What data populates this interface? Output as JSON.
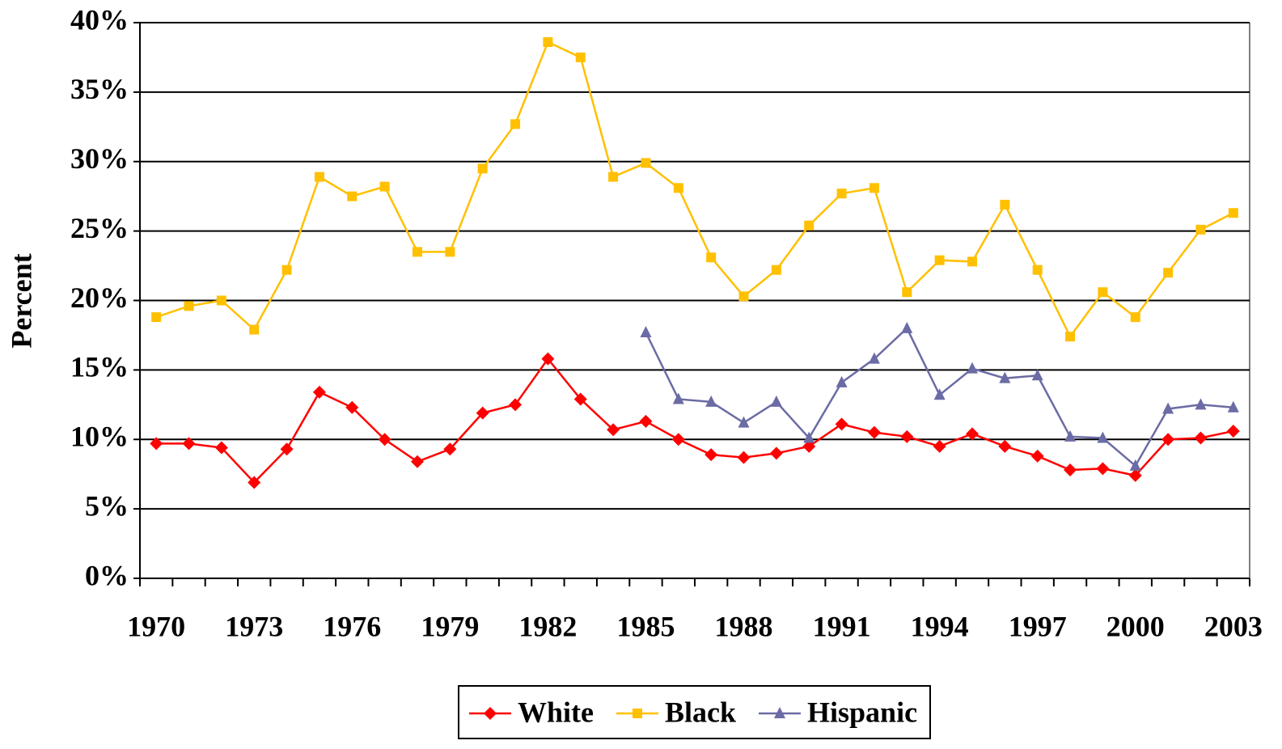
{
  "chart_data": {
    "type": "line",
    "y_label": "Percent",
    "categories": [
      "1970",
      null,
      null,
      "1973",
      null,
      null,
      "1976",
      null,
      null,
      "1979",
      null,
      null,
      "1982",
      null,
      null,
      "1985",
      null,
      null,
      "1988",
      null,
      null,
      "1991",
      null,
      null,
      "1994",
      null,
      null,
      "1997",
      null,
      null,
      "2000",
      null,
      null,
      "2003"
    ],
    "series": [
      {
        "name": "White",
        "color": "#ff0000",
        "marker": "diamond",
        "values": [
          9.7,
          9.7,
          9.4,
          6.9,
          9.3,
          13.4,
          12.3,
          10.0,
          8.4,
          9.3,
          11.9,
          12.5,
          15.8,
          12.9,
          10.7,
          11.3,
          10.0,
          8.9,
          8.7,
          9.0,
          9.5,
          11.1,
          10.5,
          10.2,
          9.5,
          10.4,
          9.5,
          8.8,
          7.8,
          7.9,
          7.4,
          10.0,
          10.1,
          10.6
        ]
      },
      {
        "name": "Black",
        "color": "#ffc000",
        "marker": "square",
        "values": [
          18.8,
          19.6,
          20.0,
          17.9,
          22.2,
          28.9,
          27.5,
          28.2,
          23.5,
          23.5,
          29.5,
          32.7,
          38.6,
          37.5,
          28.9,
          29.9,
          28.1,
          23.1,
          20.3,
          22.2,
          25.4,
          27.7,
          28.1,
          20.6,
          22.9,
          22.8,
          26.9,
          22.2,
          17.4,
          20.6,
          18.8,
          22.0,
          25.1,
          26.3
        ]
      },
      {
        "name": "Hispanic",
        "color": "#6b6ba5",
        "marker": "triangle",
        "values": [
          null,
          null,
          null,
          null,
          null,
          null,
          null,
          null,
          null,
          null,
          null,
          null,
          null,
          null,
          null,
          17.7,
          12.9,
          12.7,
          11.2,
          12.7,
          10.1,
          14.1,
          15.8,
          18.0,
          13.2,
          15.1,
          14.4,
          14.6,
          10.2,
          10.1,
          8.1,
          12.2,
          12.5,
          12.3
        ]
      }
    ],
    "ylim": [
      0,
      40
    ],
    "yticks": [
      {
        "value": 0,
        "label": "0%"
      },
      {
        "value": 5,
        "label": "5%"
      },
      {
        "value": 10,
        "label": "10%"
      },
      {
        "value": 15,
        "label": "15%"
      },
      {
        "value": 20,
        "label": "20%"
      },
      {
        "value": 25,
        "label": "25%"
      },
      {
        "value": 30,
        "label": "30%"
      },
      {
        "value": 35,
        "label": "35%"
      },
      {
        "value": 40,
        "label": "40%"
      }
    ],
    "grid": true,
    "legend": "bottom"
  }
}
